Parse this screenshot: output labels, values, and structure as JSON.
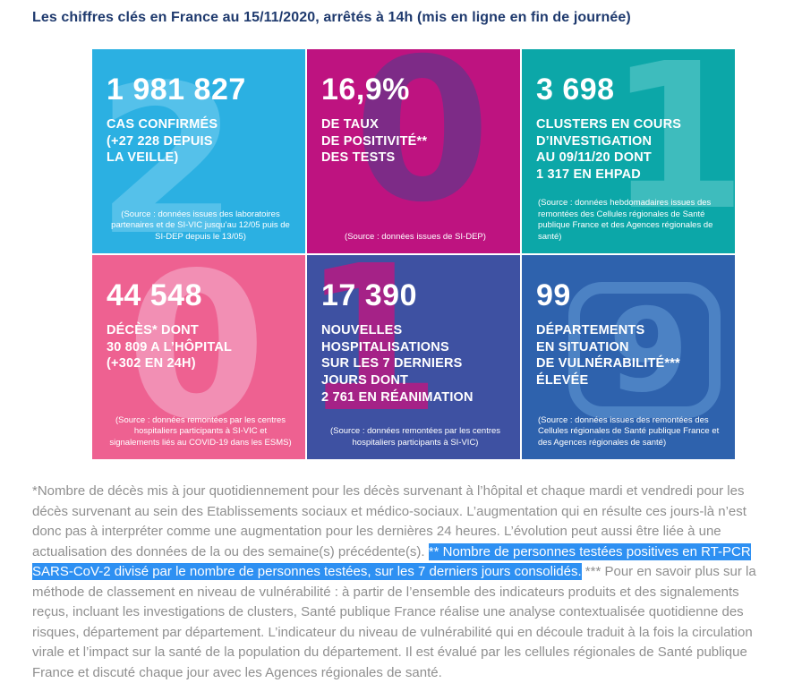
{
  "page": {
    "title": "Les chiffres clés en France au 15/11/2020, arrêtés à 14h (mis en ligne en fin de journée)"
  },
  "tiles": [
    {
      "name": "cas-confirmes",
      "value": "1 981 827",
      "label": "CAS CONFIRMÉS\n(+27 228 DEPUIS\nLA VEILLE)",
      "source": "(Source : données issues des laboratoires partenaires et de SI-VIC jusqu’au 12/05 puis de SI-DEP depuis le 13/05)",
      "bg": "#2BB0E2",
      "decor_glyph": "2",
      "decor_color": "#55C1EA"
    },
    {
      "name": "taux-positivite",
      "value": "16,9%",
      "label": "DE TAUX\nDE POSITIVITÉ**\nDES TESTS",
      "source": "(Source : données issues de SI-DEP)",
      "bg": "#BE1380",
      "decor_glyph": "0",
      "decor_color": "#7D2B87"
    },
    {
      "name": "clusters-investigation",
      "value": "3 698",
      "label": "CLUSTERS EN COURS\nD’INVESTIGATION\nAU 09/11/20 DONT\n1 317 EN EHPAD",
      "source": "(Source : données hebdomadaires issues des remontées des Cellules régionales de Santé publique France et des Agences régionales de santé)",
      "bg": "#0CA7A8",
      "decor_glyph": "1",
      "decor_color": "#3EBCBD"
    },
    {
      "name": "deces",
      "value": "44 548",
      "label": "DÉCÈS* DONT\n30 809 A L’HÔPITAL\n(+302 EN 24H)",
      "source": "(Source : données remontées par les centres hospitaliers participants à SI-VIC et signalements liés au COVID-19 dans les ESMS)",
      "bg": "#EE6191",
      "decor_glyph": "0",
      "decor_color": "#F28FB4"
    },
    {
      "name": "nouvelles-hospitalisations",
      "value": "17 390",
      "label": "NOUVELLES\nHOSPITALISATIONS\nSUR LES 7 DERNIERS\nJOURS DONT\n2 761 EN RÉANIMATION",
      "source": "(Source : données remontées par les centres hospitaliers participants à SI-VIC)",
      "bg": "#3E51A2",
      "decor_glyph": "1",
      "decor_color": "#A52287"
    },
    {
      "name": "departements-vulnerabilite",
      "value": "99",
      "label": "DÉPARTEMENTS\nEN SITUATION\nDE VULNÉRABILITÉ***\nÉLEVÉE",
      "source": "(Source : données issues des remontées des Cellules régionales de Santé publique France et des Agences régionales de santé)",
      "bg": "#2E62AD",
      "decor_glyph": "9",
      "decor_color": "#4C82C4"
    }
  ],
  "footnotes": {
    "part1": "*Nombre de décès mis à jour quotidiennement pour les décès survenant à l’hôpital et chaque mardi et vendredi pour les décès survenant au sein des Etablissements sociaux et médico-sociaux. L’augmentation qui en résulte ces jours-là n’est donc pas à interpréter comme une augmentation pour les dernières 24 heures. L’évolution peut aussi être liée à une actualisation des données de la ou des semaine(s) précédente(s). ",
    "highlight": "** Nombre de personnes testées positives en RT-PCR SARS-CoV-2 divisé par le nombre de personnes testées, sur les 7 derniers jours consolidés.",
    "part2": " *** Pour en savoir plus sur la méthode de classement en niveau de vulnérabilité : à partir de l’ensemble des indicateurs produits et des signalements reçus, incluant les investigations de clusters, Santé publique France réalise une analyse contextualisée quotidienne des risques, département par département. L’indicateur du niveau de vulnérabilité qui en découle traduit à la fois la circulation virale et l’impact sur la santé de la population du département. Il est évalué par les cellules régionales de Santé publique France et discuté chaque jour avec les Agences régionales de santé.",
    "highlight_bg": "#2E90F2"
  }
}
